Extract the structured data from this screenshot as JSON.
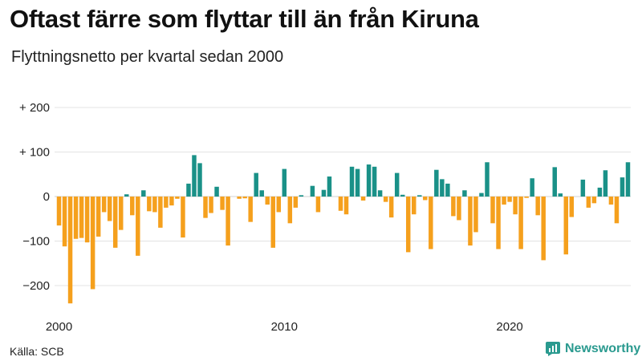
{
  "title": "Oftast färre som flyttar till än från Kiruna",
  "subtitle": "Flyttningsnetto per kvartal sedan 2000",
  "source": "Källa: SCB",
  "brand": {
    "name": "Newsworthy",
    "icon": "newsworthy-logo-icon",
    "color": "#2a9a8f"
  },
  "colors": {
    "positive": "#1a9188",
    "negative": "#f5a01d",
    "grid": "#e3e3e3"
  },
  "chart_data": {
    "type": "bar",
    "title": "Oftast färre som flyttar till än från Kiruna",
    "subtitle": "Flyttningsnetto per kvartal sedan 2000",
    "ylim": [
      -240,
      200
    ],
    "yticks": [
      200,
      100,
      0,
      -100,
      -200
    ],
    "ytick_labels": [
      "+ 200",
      "+ 100",
      "0",
      "−100",
      "−200"
    ],
    "xtick_labels": [
      "2000",
      "2010",
      "2020"
    ],
    "xtick_quarter_index": [
      0,
      40,
      80
    ],
    "grid": true,
    "start": "2000 Q1",
    "values": [
      -65,
      -112,
      -240,
      -95,
      -93,
      -103,
      -208,
      -90,
      -35,
      -55,
      -115,
      -75,
      5,
      -42,
      -133,
      14,
      -33,
      -35,
      -70,
      -25,
      -20,
      -5,
      -92,
      29,
      93,
      75,
      -48,
      -37,
      22,
      -30,
      -110,
      0,
      -5,
      -4,
      -57,
      53,
      14,
      -18,
      -115,
      -35,
      62,
      -60,
      -25,
      3,
      0,
      24,
      -35,
      15,
      45,
      0,
      -32,
      -40,
      67,
      62,
      -9,
      72,
      67,
      14,
      -12,
      -47,
      53,
      4,
      -125,
      -40,
      3,
      -8,
      -118,
      60,
      39,
      29,
      -44,
      -53,
      14,
      -110,
      -80,
      8,
      77,
      -60,
      -118,
      -18,
      -12,
      -40,
      -118,
      -3,
      41,
      -42,
      -143,
      0,
      66,
      7,
      -130,
      -46,
      0,
      38,
      -25,
      -15,
      20,
      59,
      -18,
      -60,
      43,
      77
    ]
  }
}
